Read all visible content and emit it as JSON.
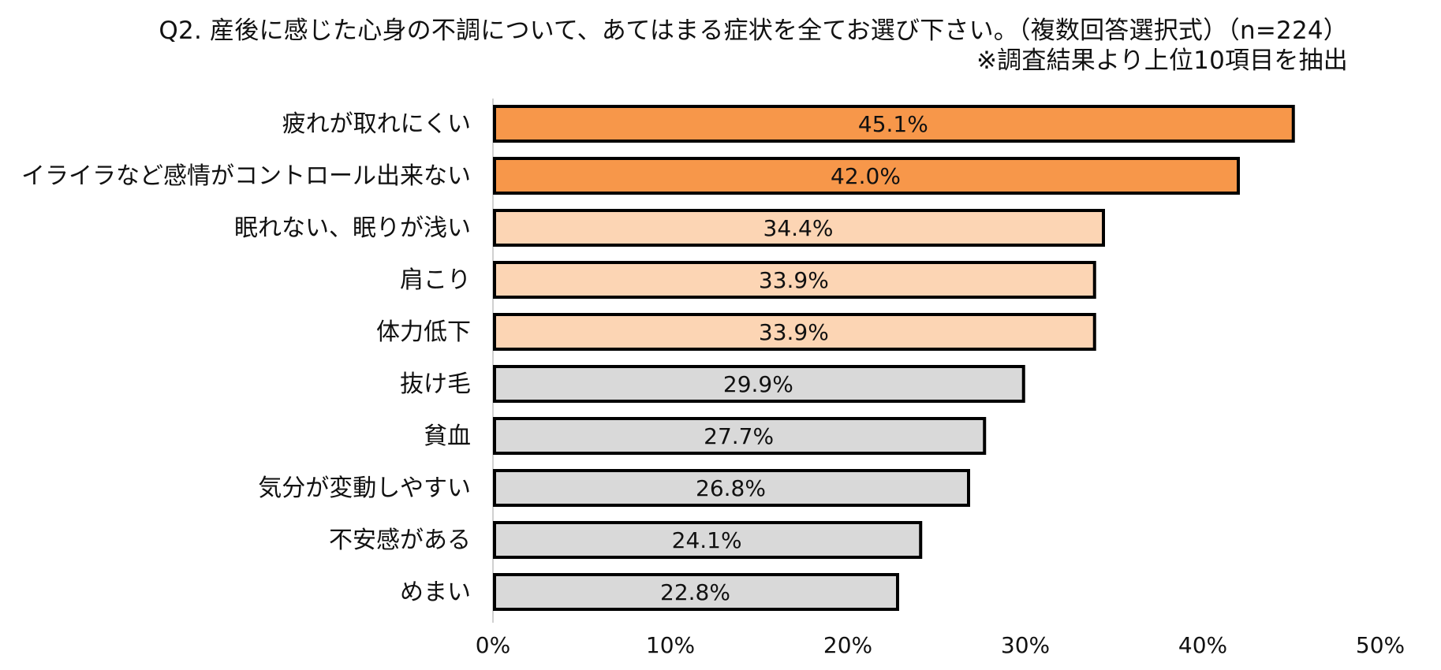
{
  "chart_data": {
    "type": "bar",
    "orientation": "horizontal",
    "title": "Q2. 産後に感じた心身の不調について、あてはまる症状を全てお選び下さい。（複数回答選択式）（n=224）",
    "subtitle": "※調査結果より上位10項目を抽出",
    "categories": [
      "疲れが取れにくい",
      "イライラなど感情がコントロール出来ない",
      "眠れない、眠りが浅い",
      "肩こり",
      "体力低下",
      "抜け毛",
      "貧血",
      "気分が変動しやすい",
      "不安感がある",
      "めまい"
    ],
    "values": [
      45.1,
      42.0,
      34.4,
      33.9,
      33.9,
      29.9,
      27.7,
      26.8,
      24.1,
      22.8
    ],
    "value_labels": [
      "45.1%",
      "42.0%",
      "34.4%",
      "33.9%",
      "33.9%",
      "29.9%",
      "27.7%",
      "26.8%",
      "24.1%",
      "22.8%"
    ],
    "bar_colors": [
      "#F7974A",
      "#F7974A",
      "#FCD5B4",
      "#FCD5B4",
      "#FCD5B4",
      "#D9D9D9",
      "#D9D9D9",
      "#D9D9D9",
      "#D9D9D9",
      "#D9D9D9"
    ],
    "bar_border_color": "#000000",
    "xlim": [
      0,
      50
    ],
    "xticks": [
      0,
      10,
      20,
      30,
      40,
      50
    ],
    "xtick_labels": [
      "0%",
      "10%",
      "20%",
      "30%",
      "40%",
      "50%"
    ],
    "xlabel": "",
    "ylabel": "",
    "grid": false,
    "legend": "none"
  }
}
